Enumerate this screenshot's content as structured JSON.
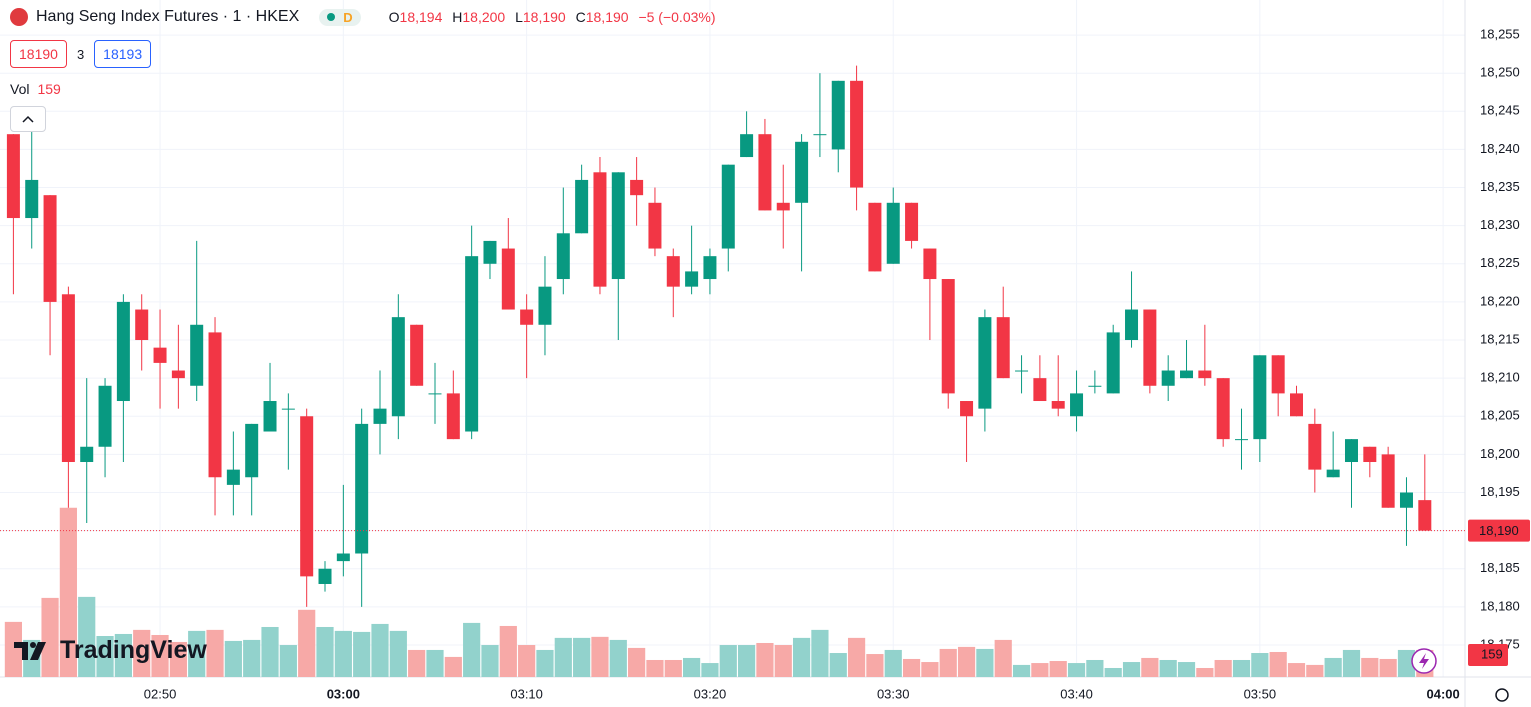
{
  "header": {
    "badge": "D",
    "ohlc": [
      {
        "label": "O",
        "value": "18,194"
      },
      {
        "label": "H",
        "value": "18,200"
      },
      {
        "label": "L",
        "value": "18,190"
      },
      {
        "label": "C",
        "value": "18,190"
      }
    ],
    "change": "−5 (−0.03%)",
    "sell": "18190",
    "spread": "3",
    "buy": "18193",
    "vol_label": "Vol",
    "watermark": "TradingView"
  },
  "chart_data": {
    "type": "candlestick",
    "title": "Hang Seng Index Futures · 1 · HKEX",
    "categories": [
      null,
      null,
      null,
      null,
      null,
      null,
      null,
      null,
      "02:50",
      null,
      null,
      null,
      null,
      null,
      null,
      null,
      null,
      null,
      "03:00",
      null,
      null,
      null,
      null,
      null,
      null,
      null,
      null,
      null,
      "03:10",
      null,
      null,
      null,
      null,
      null,
      null,
      null,
      null,
      null,
      "03:20",
      null,
      null,
      null,
      null,
      null,
      null,
      null,
      null,
      null,
      "03:30",
      null,
      null,
      null,
      null,
      null,
      null,
      null,
      null,
      null,
      "03:40",
      null,
      null,
      null,
      null,
      null,
      null,
      null,
      null,
      null,
      "03:50",
      null,
      null,
      null,
      null,
      null,
      null,
      null,
      null,
      null,
      "04:00"
    ],
    "open": [
      18242,
      18231,
      18234,
      18221,
      18199,
      18201,
      18207,
      18219,
      18214,
      18211,
      18209,
      18216,
      18196,
      18197,
      18203,
      18206,
      18205,
      18183,
      18186,
      18187,
      18204,
      18205,
      18217,
      18208,
      18208,
      18203,
      18225,
      18227,
      18219,
      18217,
      18223,
      18229,
      18237,
      18223,
      18236,
      18233,
      18226,
      18222,
      18223,
      18227,
      18239,
      18242,
      18233,
      18233,
      18242,
      18240,
      18249,
      18233,
      18225,
      18233,
      18227,
      18223,
      18207,
      18206,
      18218,
      18211,
      18210,
      18207,
      18205,
      18209,
      18208,
      18215,
      18219,
      18209,
      18210,
      18211,
      18210,
      18202,
      18202,
      18213,
      18208,
      18204,
      18197,
      18199,
      18201,
      18200,
      18193,
      18194,
      null
    ],
    "high": [
      18242,
      18243,
      18234,
      18222,
      18210,
      18210,
      18221,
      18221,
      18219,
      18217,
      18228,
      18218,
      18203,
      18204,
      18212,
      18208,
      18206,
      18186,
      18196,
      18206,
      18211,
      18221,
      18217,
      18212,
      18211,
      18230,
      18228,
      18231,
      18221,
      18226,
      18235,
      18238,
      18239,
      18237,
      18239,
      18235,
      18227,
      18230,
      18227,
      18238,
      18245,
      18244,
      18238,
      18242,
      18250,
      18249,
      18251,
      18233,
      18235,
      18233,
      18227,
      18223,
      18207,
      18219,
      18222,
      18213,
      18213,
      18213,
      18211,
      18211,
      18217,
      18224,
      18219,
      18213,
      18215,
      18217,
      18210,
      18206,
      18213,
      18213,
      18209,
      18206,
      18203,
      18202,
      18201,
      18201,
      18197,
      18200,
      null
    ],
    "low": [
      18221,
      18227,
      18213,
      18193,
      18191,
      18197,
      18199,
      18211,
      18206,
      18206,
      18207,
      18192,
      18192,
      18192,
      18203,
      18198,
      18180,
      18182,
      18184,
      18180,
      18200,
      18202,
      18209,
      18204,
      18202,
      18202,
      18223,
      18219,
      18210,
      18213,
      18221,
      18229,
      18221,
      18215,
      18230,
      18226,
      18218,
      18221,
      18221,
      18224,
      18239,
      18232,
      18227,
      18224,
      18239,
      18237,
      18232,
      18224,
      18225,
      18227,
      18215,
      18206,
      18199,
      18203,
      18210,
      18208,
      18207,
      18205,
      18203,
      18208,
      18208,
      18214,
      18208,
      18207,
      18210,
      18209,
      18201,
      18198,
      18199,
      18205,
      18205,
      18195,
      18197,
      18193,
      18197,
      18193,
      18188,
      18190,
      null
    ],
    "close": [
      18231,
      18236,
      18220,
      18199,
      18201,
      18209,
      18220,
      18215,
      18212,
      18210,
      18217,
      18197,
      18198,
      18204,
      18207,
      18206,
      18184,
      18185,
      18187,
      18204,
      18206,
      18218,
      18209,
      18208,
      18202,
      18226,
      18228,
      18219,
      18217,
      18222,
      18229,
      18236,
      18222,
      18237,
      18234,
      18227,
      18222,
      18224,
      18226,
      18238,
      18242,
      18232,
      18232,
      18241,
      18242,
      18249,
      18235,
      18224,
      18233,
      18228,
      18223,
      18208,
      18205,
      18218,
      18210,
      18211,
      18207,
      18206,
      18208,
      18209,
      18216,
      18219,
      18209,
      18211,
      18211,
      18210,
      18202,
      18202,
      18213,
      18208,
      18205,
      18198,
      18198,
      18202,
      18199,
      18193,
      18195,
      18190,
      null
    ],
    "volume": [
      324,
      218,
      465,
      995,
      471,
      241,
      253,
      277,
      247,
      206,
      271,
      277,
      212,
      218,
      294,
      188,
      395,
      294,
      271,
      265,
      312,
      271,
      159,
      159,
      118,
      318,
      188,
      300,
      188,
      159,
      230,
      230,
      236,
      218,
      171,
      100,
      100,
      112,
      82,
      188,
      188,
      200,
      188,
      230,
      277,
      141,
      230,
      135,
      159,
      106,
      88,
      165,
      177,
      165,
      218,
      71,
      82,
      94,
      82,
      100,
      53,
      88,
      112,
      100,
      88,
      53,
      100,
      100,
      141,
      147,
      82,
      71,
      112,
      159,
      112,
      106,
      159,
      159,
      null
    ],
    "up_color": "#089981",
    "down_color": "#f23645",
    "volume_up_color": "#92d2cc",
    "volume_down_color": "#f7a9a7",
    "ylim": [
      18170.8,
      18259.6
    ],
    "yticks": [
      {
        "value": 18175,
        "label": "18,175"
      },
      {
        "value": 18180,
        "label": "18,180"
      },
      {
        "value": 18185,
        "label": "18,185"
      },
      {
        "value": 18190,
        "label": "18,190"
      },
      {
        "value": 18195,
        "label": "18,195"
      },
      {
        "value": 18200,
        "label": "18,200"
      },
      {
        "value": 18205,
        "label": "18,205"
      },
      {
        "value": 18210,
        "label": "18,210"
      },
      {
        "value": 18215,
        "label": "18,215"
      },
      {
        "value": 18220,
        "label": "18,220"
      },
      {
        "value": 18225,
        "label": "18,225"
      },
      {
        "value": 18230,
        "label": "18,230"
      },
      {
        "value": 18235,
        "label": "18,235"
      },
      {
        "value": 18240,
        "label": "18,240"
      },
      {
        "value": 18245,
        "label": "18,245"
      },
      {
        "value": 18250,
        "label": "18,250"
      },
      {
        "value": 18255,
        "label": "18,255"
      }
    ],
    "last_price": {
      "value": 18190,
      "label": "18,190"
    },
    "grid": true
  }
}
